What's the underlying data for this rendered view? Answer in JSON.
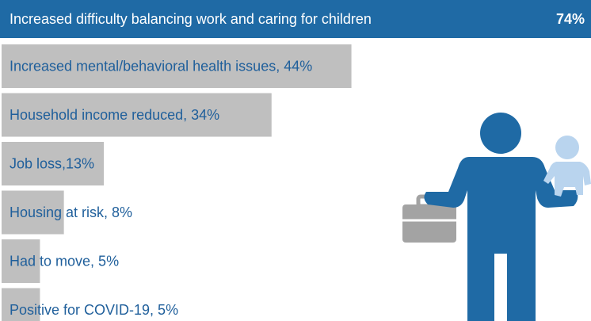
{
  "chart_data": {
    "type": "bar",
    "orientation": "horizontal",
    "categories": [
      "Increased difficulty balancing work and caring for children",
      "Increased mental/behavioral  health issues, 44%",
      "Household income reduced, 34%",
      "Job loss,13%",
      "Housing at risk, 8%",
      "Had to move, 5%",
      "Positive for COVID-19, 5%"
    ],
    "values": [
      74,
      44,
      34,
      13,
      8,
      5,
      5
    ],
    "value_labels": [
      "74%",
      null,
      null,
      null,
      null,
      null,
      null
    ],
    "colors": [
      "#1f6aa5",
      "#bfbfbf",
      "#bfbfbf",
      "#bfbfbf",
      "#bfbfbf",
      "#bfbfbf",
      "#bfbfbf"
    ],
    "xlim": [
      0,
      74
    ]
  }
}
